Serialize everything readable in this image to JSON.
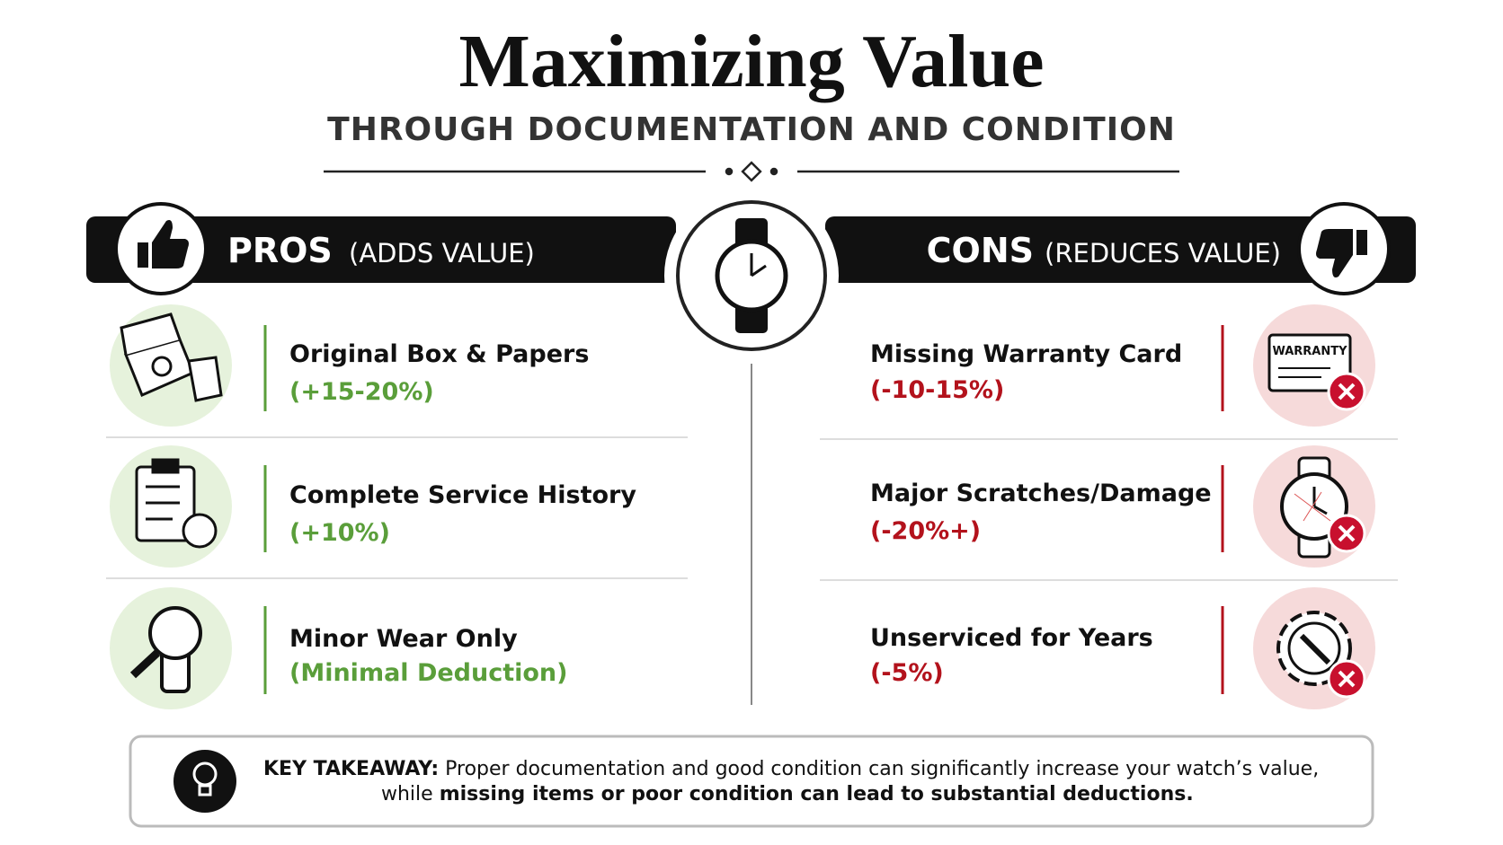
{
  "header": {
    "title": "Maximizing Value",
    "subtitle": "THROUGH DOCUMENTATION AND CONDITION"
  },
  "pros": {
    "label": "PROS",
    "sublabel": "(ADDS VALUE)",
    "items": [
      {
        "title": "Original Box & Papers",
        "detail": "(+15-20%)"
      },
      {
        "title": "Complete Service History",
        "detail": "(+10%)"
      },
      {
        "title": "Minor Wear Only",
        "detail": "(Minimal Deduction)"
      }
    ]
  },
  "cons": {
    "label": "CONS",
    "sublabel": "(REDUCES VALUE)",
    "items": [
      {
        "title": "Missing Warranty Card",
        "detail": "(-10-15%)",
        "icon_text": "WARRANTY"
      },
      {
        "title": "Major Scratches/Damage",
        "detail": "(-20%+)"
      },
      {
        "title": "Unserviced for Years",
        "detail": "(-5%)"
      }
    ]
  },
  "takeaway": {
    "label": "KEY TAKEAWAY:",
    "line_1": "Proper documentation and good condition can significantly increase your watch’s value,",
    "line_2_start": "while",
    "line_2_bold": "missing items or poor condition can lead to substantial deductions."
  }
}
